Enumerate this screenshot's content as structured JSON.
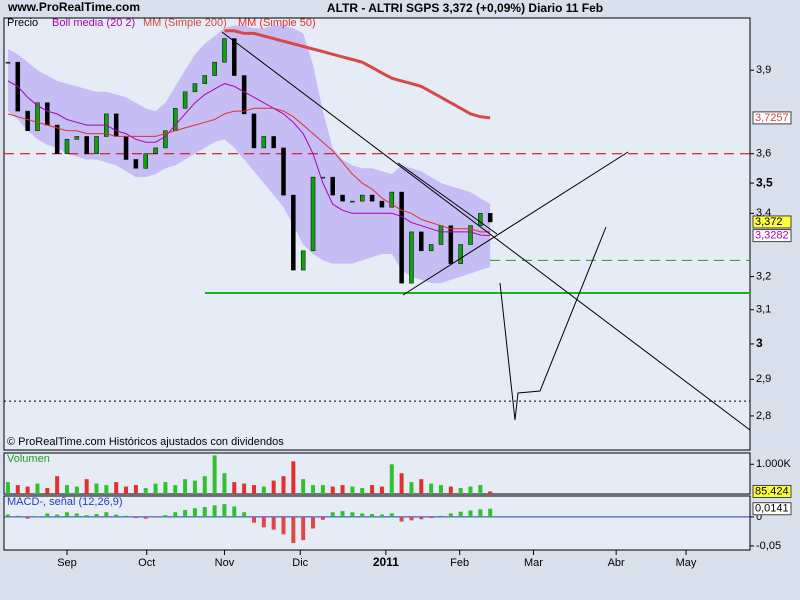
{
  "header": {
    "site": "www.ProRealTime.com"
  },
  "chart_data": [
    {
      "type": "candlestick",
      "title": "ALTR - ALTRI SGPS   3,372 (+0,09%)   Diario  11 Feb",
      "source": "© ProRealTime.com Históricos ajustados con dividendos",
      "log_scale": true,
      "ylim": [
        2.71,
        4.1
      ],
      "yticks": [
        {
          "value": 3.9,
          "label": "3,9"
        },
        {
          "value": 3.6,
          "label": "3,6"
        },
        {
          "value": 3.5,
          "label": "3,5"
        },
        {
          "value": 3.4,
          "label": "3,4"
        },
        {
          "value": 3.2,
          "label": "3,2"
        },
        {
          "value": 3.1,
          "label": "3,1"
        },
        3,
        {
          "value": 2.9,
          "label": "2,9"
        },
        {
          "value": 2.8,
          "label": "2,8"
        }
      ],
      "up_color": "#10a010",
      "down_color": "#000000",
      "series": [
        {
          "name": "Precio",
          "color": "#000000",
          "values": [
            3.93,
            3.75,
            3.68,
            3.78,
            3.7,
            3.6,
            3.65,
            3.66,
            3.6,
            3.66,
            3.74,
            3.66,
            3.58,
            3.55,
            3.6,
            3.62,
            3.68,
            3.76,
            3.82,
            3.85,
            3.88,
            3.93,
            4.02,
            3.88,
            3.74,
            3.62,
            3.66,
            3.62,
            3.46,
            3.22,
            3.28,
            3.52,
            3.52,
            3.46,
            3.44,
            3.44,
            3.46,
            3.44,
            3.42,
            3.47,
            3.18,
            3.34,
            3.28,
            3.3,
            3.36,
            3.24,
            3.3,
            3.36,
            3.4,
            3.372
          ],
          "value_labels": [
            null,
            null,
            null,
            null,
            null,
            null,
            null,
            null,
            null,
            null,
            null,
            null,
            null,
            null,
            null,
            null,
            null,
            null,
            null,
            null,
            null,
            null,
            null,
            null,
            null,
            null,
            null,
            null,
            null,
            null,
            null,
            null,
            null,
            null,
            null,
            null,
            null,
            null,
            null,
            null,
            null,
            null,
            null,
            null,
            null,
            null,
            null,
            null,
            null,
            "3,372"
          ]
        },
        {
          "name": "Boll media (20 2)",
          "color": "#b000b0",
          "band_color": "#c6bdf4",
          "values": [
            3.86,
            3.84,
            3.8,
            3.77,
            3.75,
            3.74,
            3.72,
            3.71,
            3.7,
            3.7,
            3.7,
            3.68,
            3.67,
            3.65,
            3.64,
            3.64,
            3.66,
            3.7,
            3.74,
            3.78,
            3.81,
            3.83,
            3.85,
            3.84,
            3.82,
            3.8,
            3.78,
            3.76,
            3.74,
            3.71,
            3.67,
            3.6,
            3.5,
            3.43,
            3.41,
            3.4,
            3.4,
            3.4,
            3.4,
            3.4,
            3.39,
            3.37,
            3.36,
            3.35,
            3.34,
            3.34,
            3.34,
            3.34,
            3.33,
            3.3282
          ],
          "upper": [
            3.98,
            3.96,
            3.93,
            3.9,
            3.88,
            3.86,
            3.85,
            3.84,
            3.83,
            3.82,
            3.82,
            3.81,
            3.8,
            3.78,
            3.76,
            3.75,
            3.78,
            3.84,
            3.9,
            3.96,
            4.0,
            4.03,
            4.06,
            4.07,
            4.07,
            4.06,
            4.06,
            4.07,
            4.07,
            4.06,
            4.04,
            3.92,
            3.75,
            3.62,
            3.58,
            3.56,
            3.55,
            3.55,
            3.54,
            3.53,
            3.56,
            3.55,
            3.54,
            3.52,
            3.5,
            3.49,
            3.48,
            3.47,
            3.45,
            3.43
          ],
          "lower": [
            3.75,
            3.72,
            3.68,
            3.65,
            3.63,
            3.62,
            3.6,
            3.59,
            3.58,
            3.58,
            3.57,
            3.56,
            3.54,
            3.52,
            3.52,
            3.53,
            3.55,
            3.56,
            3.58,
            3.6,
            3.62,
            3.64,
            3.65,
            3.62,
            3.58,
            3.54,
            3.5,
            3.46,
            3.42,
            3.36,
            3.3,
            3.27,
            3.25,
            3.24,
            3.24,
            3.24,
            3.25,
            3.26,
            3.27,
            3.27,
            3.22,
            3.2,
            3.19,
            3.18,
            3.18,
            3.19,
            3.2,
            3.21,
            3.22,
            3.23
          ],
          "value_labels": [
            null,
            null,
            null,
            null,
            null,
            null,
            null,
            null,
            null,
            null,
            null,
            null,
            null,
            null,
            null,
            null,
            null,
            null,
            null,
            null,
            null,
            null,
            null,
            null,
            null,
            null,
            null,
            null,
            null,
            null,
            null,
            null,
            null,
            null,
            null,
            null,
            null,
            null,
            null,
            null,
            null,
            null,
            null,
            null,
            null,
            null,
            null,
            null,
            null,
            "3,3282"
          ]
        },
        {
          "name": "MM (Simple 200)",
          "color": "#d84848",
          "width": 3,
          "values": [
            null,
            null,
            null,
            null,
            null,
            null,
            null,
            null,
            null,
            null,
            null,
            null,
            null,
            null,
            null,
            null,
            null,
            null,
            null,
            null,
            null,
            null,
            4.05,
            4.05,
            4.04,
            4.04,
            4.03,
            4.02,
            4.01,
            4.0,
            3.99,
            3.98,
            3.97,
            3.96,
            3.95,
            3.94,
            3.93,
            3.91,
            3.89,
            3.87,
            3.86,
            3.85,
            3.84,
            3.82,
            3.8,
            3.78,
            3.76,
            3.74,
            3.73,
            3.7257
          ],
          "value_labels": [
            null,
            null,
            null,
            null,
            null,
            null,
            null,
            null,
            null,
            null,
            null,
            null,
            null,
            null,
            null,
            null,
            null,
            null,
            null,
            null,
            null,
            null,
            null,
            null,
            null,
            null,
            null,
            null,
            null,
            null,
            null,
            null,
            null,
            null,
            null,
            null,
            null,
            null,
            null,
            null,
            null,
            null,
            null,
            null,
            null,
            null,
            null,
            null,
            null,
            "3,7257"
          ]
        },
        {
          "name": "MM (Simple 50)",
          "color": "#e03030",
          "width": 1,
          "values": [
            3.74,
            3.73,
            3.72,
            3.71,
            3.7,
            3.69,
            3.68,
            3.68,
            3.67,
            3.67,
            3.67,
            3.66,
            3.66,
            3.66,
            3.66,
            3.66,
            3.67,
            3.68,
            3.69,
            3.7,
            3.71,
            3.72,
            3.74,
            3.75,
            3.75,
            3.76,
            3.76,
            3.76,
            3.75,
            3.73,
            3.7,
            3.67,
            3.64,
            3.61,
            3.57,
            3.53,
            3.5,
            3.48,
            3.45,
            3.43,
            3.41,
            3.4,
            3.38,
            3.37,
            3.36,
            3.35,
            3.35,
            3.35,
            3.34,
            3.34
          ]
        }
      ],
      "hlines": [
        {
          "value": 3.6,
          "color": "#c00000",
          "style": "dashed"
        },
        {
          "value": 3.25,
          "color": "#20a020",
          "style": "dashed"
        },
        {
          "value": 3.15,
          "color": "#20b020",
          "style": "solid"
        },
        {
          "value": 2.84,
          "color": "#000000",
          "style": "dotted"
        }
      ]
    },
    {
      "type": "bar",
      "title": "Volumen",
      "color_by": "price",
      "up_color": "#30c030",
      "down_color": "#e03030",
      "ylim": [
        0,
        1380000
      ],
      "yticks": [
        {
          "value": 1000000,
          "label": "1.000K"
        }
      ],
      "values": [
        400000,
        300000,
        250000,
        350000,
        200000,
        600000,
        300000,
        250000,
        500000,
        350000,
        300000,
        400000,
        250000,
        300000,
        200000,
        350000,
        400000,
        300000,
        500000,
        450000,
        600000,
        1300000,
        700000,
        400000,
        350000,
        300000,
        250000,
        450000,
        600000,
        1100000,
        500000,
        300000,
        300000,
        250000,
        300000,
        250000,
        200000,
        300000,
        250000,
        1000000,
        700000,
        400000,
        500000,
        350000,
        300000,
        250000,
        200000,
        250000,
        300000,
        85424
      ],
      "value_labels": [
        null,
        null,
        null,
        null,
        null,
        null,
        null,
        null,
        null,
        null,
        null,
        null,
        null,
        null,
        null,
        null,
        null,
        null,
        null,
        null,
        null,
        null,
        null,
        null,
        null,
        null,
        null,
        null,
        null,
        null,
        null,
        null,
        null,
        null,
        null,
        null,
        null,
        null,
        null,
        null,
        null,
        null,
        null,
        null,
        null,
        null,
        null,
        null,
        null,
        "85.424"
      ]
    },
    {
      "type": "bar",
      "title": "MACD-, señal (12,26,9)",
      "color_by": "sign",
      "up_color": "#30c030",
      "down_color": "#e04848",
      "ylim": [
        -0.057,
        0.036
      ],
      "yticks": [
        0,
        {
          "value": -0.05,
          "label": "-0,05"
        }
      ],
      "values": [
        0.004,
        0.002,
        -0.003,
        0.001,
        0.006,
        0.004,
        0.008,
        0.006,
        0.003,
        0.005,
        0.008,
        0.004,
        0.002,
        -0.002,
        -0.003,
        -0.001,
        0.003,
        0.008,
        0.012,
        0.015,
        0.017,
        0.02,
        0.022,
        0.018,
        0.008,
        -0.01,
        -0.018,
        -0.022,
        -0.03,
        -0.045,
        -0.04,
        -0.02,
        -0.005,
        0.008,
        0.01,
        0.008,
        0.006,
        0.005,
        0.004,
        0.006,
        -0.008,
        -0.006,
        -0.004,
        -0.002,
        0.002,
        0.006,
        0.009,
        0.011,
        0.013,
        0.0141
      ],
      "value_labels": [
        null,
        null,
        null,
        null,
        null,
        null,
        null,
        null,
        null,
        null,
        null,
        null,
        null,
        null,
        null,
        null,
        null,
        null,
        null,
        null,
        null,
        null,
        null,
        null,
        null,
        null,
        null,
        null,
        null,
        null,
        null,
        null,
        null,
        null,
        null,
        null,
        null,
        null,
        null,
        null,
        null,
        null,
        null,
        null,
        null,
        null,
        null,
        null,
        null,
        "0,0141"
      ],
      "xlim": [
        -0.4,
        75.4
      ],
      "xticks": [
        {
          "value": 6.0,
          "label": "Sep"
        },
        {
          "value": 14.1,
          "label": "Oct"
        },
        {
          "value": 22.0,
          "label": "Nov"
        },
        {
          "value": 29.7,
          "label": "Dic"
        },
        {
          "value": 38.4,
          "label": "2011"
        },
        {
          "value": 45.9,
          "label": "Feb"
        },
        {
          "value": 53.4,
          "label": "Mar"
        },
        {
          "value": 61.8,
          "label": "Abr"
        },
        {
          "value": 68.9,
          "label": "May"
        }
      ]
    }
  ]
}
